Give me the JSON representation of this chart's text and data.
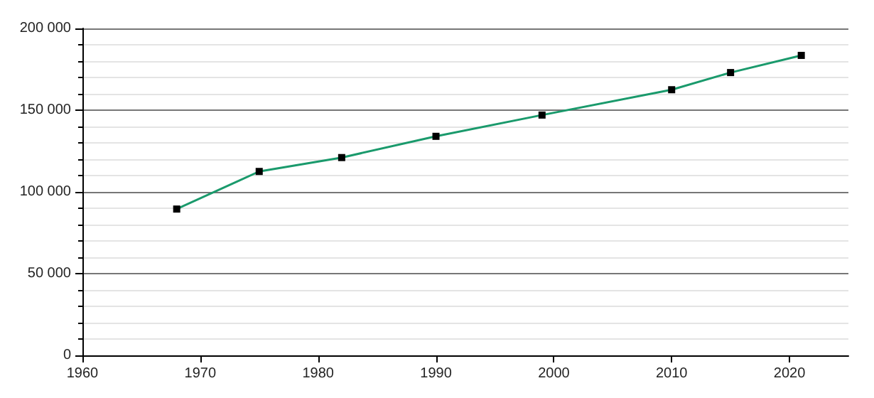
{
  "chart_data": {
    "type": "line",
    "x": [
      1968,
      1975,
      1982,
      1990,
      1999,
      2010,
      2015,
      2021
    ],
    "series": [
      {
        "color": "#1a9a6c",
        "colors": [
          "#000000",
          "#000000",
          "#000000",
          "#000000",
          "#000000",
          "#000000",
          "#000000",
          "#000000"
        ],
        "values": [
          89500,
          112500,
          121000,
          134000,
          147000,
          162500,
          173000,
          183500
        ]
      }
    ],
    "xlim": [
      1960,
      2025
    ],
    "xticks": [
      1960,
      1970,
      1980,
      1990,
      2000,
      2010,
      2020
    ],
    "ylim": [
      0,
      200000
    ],
    "yticks": [
      {
        "value": 0,
        "label": "0"
      },
      {
        "value": 50000,
        "label": "50 000"
      },
      {
        "value": 100000,
        "label": "100 000"
      },
      {
        "value": 150000,
        "label": "150 000"
      },
      {
        "value": 200000,
        "label": "200 000"
      }
    ],
    "grid": "y",
    "marker": "square",
    "line_style": "solid"
  }
}
